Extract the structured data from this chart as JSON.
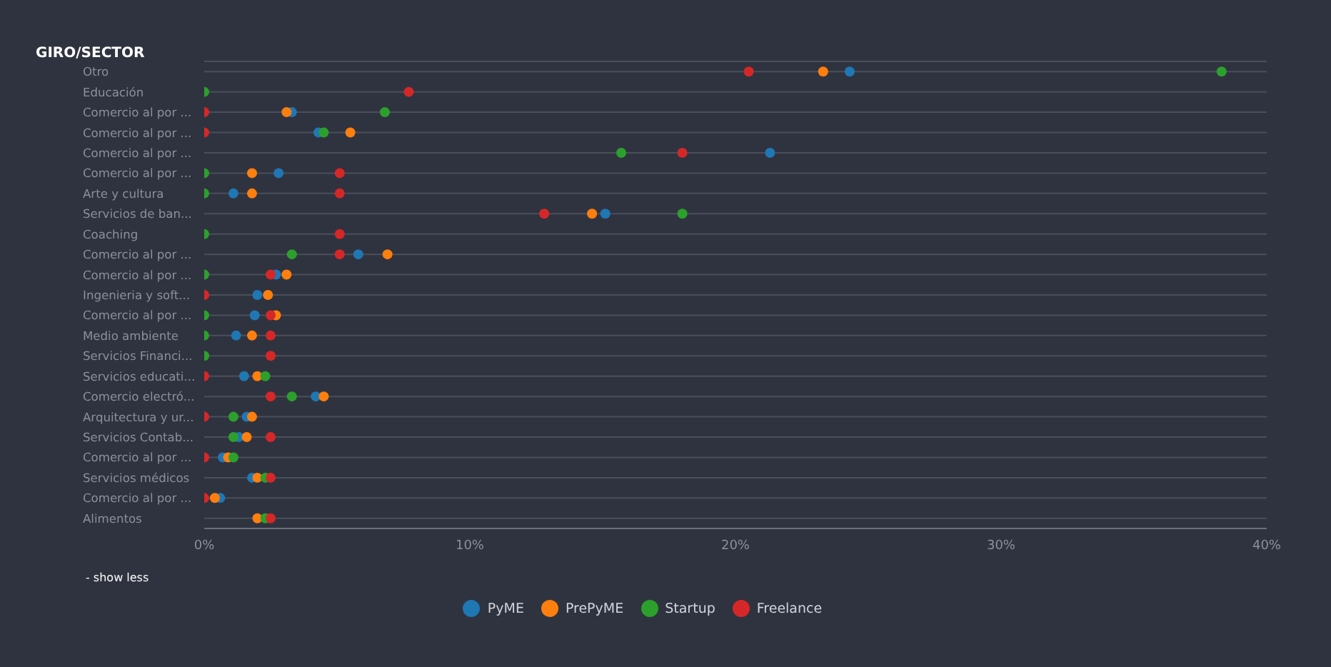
{
  "chart_data": {
    "type": "scatter",
    "orientation": "horizontal",
    "title": "GIRO/SECTOR",
    "categories": [
      "Otro",
      "Educación",
      "Comercio al por ...",
      "Comercio al por ...",
      "Comercio al por ...",
      "Comercio al por ...",
      "Arte y cultura",
      "Servicios de ban...",
      "Coaching",
      "Comercio al por ...",
      "Comercio al por ...",
      "Ingenieria y soft...",
      "Comercio al por ...",
      "Medio ambiente",
      "Servicios Financi...",
      "Servicios educati...",
      "Comercio electró...",
      "Arquitectura y ur...",
      "Servicios Contab...",
      "Comercio al por ...",
      "Servicios médicos",
      "Comercio al por ...",
      "Alimentos"
    ],
    "series": [
      {
        "name": "PyME",
        "color": "#1f77b4",
        "values": [
          24.3,
          null,
          3.3,
          4.3,
          21.3,
          2.8,
          1.1,
          15.1,
          null,
          5.8,
          2.7,
          2.0,
          1.9,
          1.2,
          null,
          1.5,
          4.2,
          1.6,
          1.3,
          0.7,
          1.8,
          0.6,
          null
        ]
      },
      {
        "name": "PrePyME",
        "color": "#ff7f0e",
        "values": [
          23.3,
          null,
          3.1,
          5.5,
          null,
          1.8,
          1.8,
          14.6,
          null,
          6.9,
          3.1,
          2.4,
          2.7,
          1.8,
          null,
          2.0,
          4.5,
          1.8,
          1.6,
          0.9,
          2.0,
          0.4,
          2.0
        ]
      },
      {
        "name": "Startup",
        "color": "#2ca02c",
        "values": [
          38.3,
          0,
          6.8,
          4.5,
          15.7,
          0,
          0,
          18.0,
          0,
          3.3,
          0,
          null,
          0,
          0,
          0,
          2.3,
          3.3,
          1.1,
          1.1,
          1.1,
          2.3,
          null,
          2.3
        ]
      },
      {
        "name": "Freelance",
        "color": "#d62728",
        "values": [
          20.5,
          7.7,
          0,
          0,
          18.0,
          5.1,
          5.1,
          12.8,
          5.1,
          5.1,
          2.5,
          0,
          2.5,
          2.5,
          2.5,
          0,
          2.5,
          0,
          2.5,
          0,
          2.5,
          0,
          2.5
        ]
      }
    ],
    "xlim": [
      0,
      40
    ],
    "xticks": [
      {
        "value": 0,
        "label": "0%"
      },
      {
        "value": 10,
        "label": "10%"
      },
      {
        "value": 20,
        "label": "20%"
      },
      {
        "value": 30,
        "label": "30%"
      },
      {
        "value": 40,
        "label": "40%"
      }
    ],
    "grid": "y",
    "legend": "bottom",
    "marker": "circle",
    "annotations": [
      "- show less"
    ]
  }
}
